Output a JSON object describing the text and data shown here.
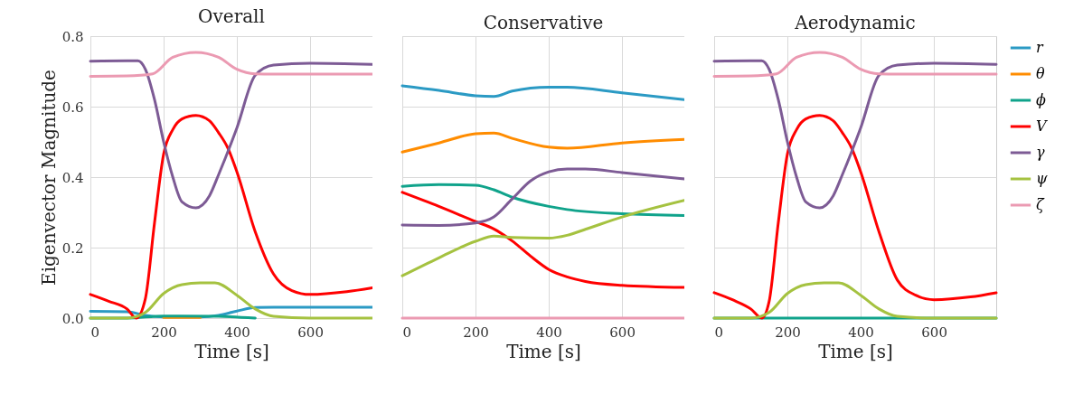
{
  "chart_data": [
    {
      "type": "line",
      "title": "Overall",
      "xlabel": "Time [s]",
      "ylabel": "Eigenvector Magnitude",
      "xlim": [
        0,
        770
      ],
      "xticks": [
        0,
        200,
        400,
        600
      ],
      "ylim": [
        0,
        0.8
      ],
      "yticks": [
        {
          "value": 0,
          "label": "0.0"
        },
        {
          "value": 0.2,
          "label": "0.2"
        },
        {
          "value": 0.4,
          "label": "0.4"
        },
        {
          "value": 0.6,
          "label": "0.6"
        },
        {
          "value": 0.8,
          "label": "0.8"
        }
      ],
      "grid": true,
      "series": [
        {
          "color": "#2b9ac4",
          "x": [
            0,
            100,
            150,
            200,
            300,
            350,
            400,
            450,
            500,
            770
          ],
          "values": [
            0.019,
            0.018,
            0.008,
            0.003,
            0.003,
            0.008,
            0.02,
            0.03,
            0.031,
            0.031
          ]
        },
        {
          "color": "#ff8c00",
          "x": [
            200,
            300
          ],
          "values": [
            0.002,
            0.002
          ]
        },
        {
          "color": "#10a38b",
          "x": [
            0,
            100,
            200,
            350,
            450
          ],
          "values": [
            0,
            0,
            0.006,
            0.005,
            0
          ]
        },
        {
          "color": "#ff0000",
          "x": [
            0,
            50,
            100,
            125,
            150,
            175,
            200,
            225,
            250,
            288,
            325,
            350,
            375,
            400,
            450,
            500,
            550,
            600,
            700,
            770
          ],
          "values": [
            0.067,
            0.048,
            0.026,
            0,
            0.055,
            0.27,
            0.466,
            0.535,
            0.565,
            0.575,
            0.56,
            0.526,
            0.483,
            0.415,
            0.245,
            0.125,
            0.078,
            0.067,
            0.075,
            0.086
          ]
        },
        {
          "color": "#7d5b95",
          "x": [
            0,
            100,
            130,
            150,
            175,
            200,
            225,
            250,
            288,
            325,
            350,
            400,
            450,
            500,
            600,
            770
          ],
          "values": [
            0.729,
            0.73,
            0.73,
            0.706,
            0.62,
            0.5,
            0.4,
            0.33,
            0.313,
            0.347,
            0.407,
            0.54,
            0.689,
            0.718,
            0.723,
            0.72
          ]
        },
        {
          "color": "#a5c240",
          "x": [
            0,
            100,
            150,
            200,
            250,
            300,
            340,
            400,
            450,
            500,
            600,
            770
          ],
          "values": [
            0,
            0,
            0.016,
            0.07,
            0.095,
            0.1,
            0.1,
            0.065,
            0.026,
            0.005,
            0,
            0
          ]
        },
        {
          "color": "#eb9ab2",
          "x": [
            0,
            100,
            170,
            225,
            288,
            350,
            400,
            450,
            500,
            770
          ],
          "values": [
            0.686,
            0.687,
            0.693,
            0.74,
            0.754,
            0.74,
            0.706,
            0.693,
            0.692,
            0.692
          ]
        }
      ]
    },
    {
      "type": "line",
      "title": "Conservative",
      "xlabel": "Time [s]",
      "xlim": [
        0,
        770
      ],
      "xticks": [
        0,
        200,
        400,
        600
      ],
      "ylim": [
        0,
        0.8
      ],
      "yticks": [
        0,
        0.2,
        0.4,
        0.6,
        0.8
      ],
      "tick_labels": "x",
      "grid": true,
      "series": [
        {
          "color": "#2b9ac4",
          "x": [
            0,
            100,
            200,
            250,
            300,
            400,
            450,
            600,
            770
          ],
          "values": [
            0.659,
            0.646,
            0.631,
            0.629,
            0.644,
            0.655,
            0.655,
            0.639,
            0.62
          ]
        },
        {
          "color": "#ff8c00",
          "x": [
            0,
            100,
            200,
            250,
            300,
            400,
            450,
            600,
            770
          ],
          "values": [
            0.471,
            0.497,
            0.523,
            0.525,
            0.51,
            0.485,
            0.482,
            0.497,
            0.507
          ]
        },
        {
          "color": "#10a38b",
          "x": [
            0,
            100,
            200,
            250,
            300,
            400,
            450,
            600,
            770
          ],
          "values": [
            0.374,
            0.379,
            0.377,
            0.364,
            0.343,
            0.317,
            0.308,
            0.296,
            0.291
          ]
        },
        {
          "color": "#ff0000",
          "x": [
            0,
            100,
            200,
            250,
            300,
            350,
            400,
            450,
            500,
            600,
            770
          ],
          "values": [
            0.357,
            0.317,
            0.274,
            0.253,
            0.219,
            0.176,
            0.138,
            0.117,
            0.104,
            0.093,
            0.087
          ]
        },
        {
          "color": "#7d5b95",
          "x": [
            0,
            100,
            200,
            250,
            300,
            350,
            400,
            450,
            500,
            600,
            770
          ],
          "values": [
            0.264,
            0.263,
            0.27,
            0.287,
            0.338,
            0.389,
            0.415,
            0.423,
            0.423,
            0.413,
            0.395
          ]
        },
        {
          "color": "#a5c240",
          "x": [
            0,
            100,
            200,
            250,
            300,
            400,
            450,
            500,
            600,
            770
          ],
          "values": [
            0.12,
            0.171,
            0.218,
            0.233,
            0.229,
            0.227,
            0.235,
            0.252,
            0.287,
            0.334
          ]
        },
        {
          "color": "#eb9ab2",
          "x": [
            0,
            770
          ],
          "values": [
            0,
            0
          ]
        }
      ]
    },
    {
      "type": "line",
      "title": "Aerodynamic",
      "xlabel": "Time [s]",
      "xlim": [
        0,
        770
      ],
      "xticks": [
        0,
        200,
        400,
        600
      ],
      "ylim": [
        0,
        0.8
      ],
      "yticks": [
        0,
        0.2,
        0.4,
        0.6,
        0.8
      ],
      "tick_labels": "x",
      "grid": true,
      "legend": "right",
      "series": [
        {
          "name": "r",
          "color": "#2b9ac4"
        },
        {
          "name": "θ",
          "color": "#ff8c00"
        },
        {
          "name": "ϕ",
          "color": "#10a38b",
          "x": [
            0,
            770
          ],
          "values": [
            0,
            0
          ]
        },
        {
          "name": "V",
          "color": "#ff0000",
          "x": [
            0,
            50,
            100,
            130,
            150,
            175,
            200,
            225,
            250,
            288,
            325,
            350,
            375,
            400,
            450,
            500,
            550,
            600,
            700,
            770
          ],
          "values": [
            0.072,
            0.052,
            0.026,
            0,
            0.047,
            0.27,
            0.466,
            0.535,
            0.565,
            0.575,
            0.56,
            0.526,
            0.483,
            0.415,
            0.245,
            0.108,
            0.065,
            0.052,
            0.06,
            0.072
          ]
        },
        {
          "name": "γ",
          "color": "#7d5b95",
          "x": [
            0,
            100,
            130,
            150,
            175,
            200,
            225,
            250,
            288,
            325,
            350,
            400,
            450,
            500,
            600,
            770
          ],
          "values": [
            0.729,
            0.73,
            0.73,
            0.706,
            0.62,
            0.5,
            0.4,
            0.33,
            0.313,
            0.347,
            0.407,
            0.54,
            0.689,
            0.718,
            0.723,
            0.72
          ]
        },
        {
          "name": "ψ",
          "color": "#a5c240",
          "x": [
            0,
            100,
            150,
            200,
            250,
            300,
            340,
            400,
            450,
            500,
            600,
            770
          ],
          "values": [
            0,
            0,
            0.016,
            0.07,
            0.095,
            0.1,
            0.1,
            0.065,
            0.026,
            0.005,
            0,
            0
          ]
        },
        {
          "name": "ζ",
          "color": "#eb9ab2",
          "x": [
            0,
            100,
            170,
            225,
            288,
            350,
            400,
            450,
            500,
            770
          ],
          "values": [
            0.686,
            0.687,
            0.693,
            0.74,
            0.754,
            0.74,
            0.706,
            0.693,
            0.692,
            0.692
          ]
        }
      ]
    }
  ]
}
